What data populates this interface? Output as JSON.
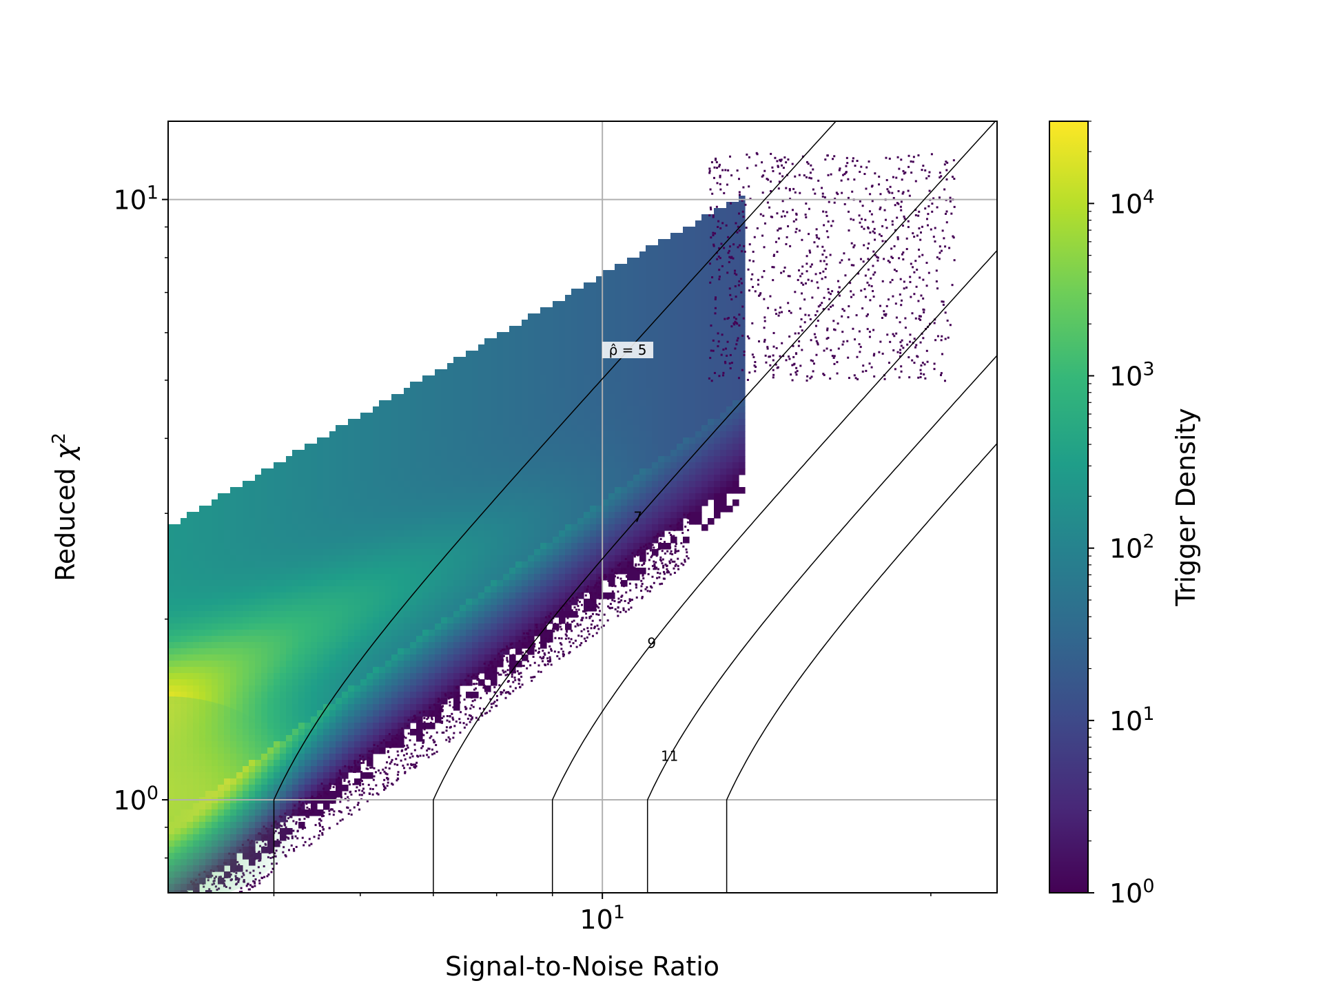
{
  "chart_data": {
    "type": "heatmap",
    "subtype": "hexbin-density",
    "xlabel": "Signal-to-Noise Ratio",
    "ylabel": "Reduced χ²",
    "ylabel_parts": {
      "base": "Reduced ",
      "symbol": "χ",
      "power": "2"
    },
    "x_scale": "log",
    "y_scale": "log",
    "xlim": [
      4.0,
      23.0
    ],
    "ylim": [
      0.7,
      13.5
    ],
    "grid": true,
    "x_major_ticks": [
      {
        "value": 10,
        "base": "10",
        "power": "1"
      }
    ],
    "x_minor_ticks": [
      5,
      6,
      7,
      8,
      9,
      20
    ],
    "y_major_ticks": [
      {
        "value": 1,
        "base": "10",
        "power": "0"
      },
      {
        "value": 10,
        "base": "10",
        "power": "1"
      }
    ],
    "y_minor_ticks": [
      0.8,
      0.9,
      2,
      3,
      4,
      5,
      6,
      7,
      8,
      9
    ],
    "colorbar": {
      "label": "Trigger Density",
      "scale": "log",
      "colormap": "viridis",
      "range": [
        1,
        30000
      ],
      "ticks": [
        {
          "value": 1,
          "base": "10",
          "power": "0"
        },
        {
          "value": 10,
          "base": "10",
          "power": "1"
        },
        {
          "value": 100,
          "base": "10",
          "power": "2"
        },
        {
          "value": 1000,
          "base": "10",
          "power": "3"
        },
        {
          "value": 10000,
          "base": "10",
          "power": "4"
        }
      ],
      "colormap_stops": [
        "#440154",
        "#482878",
        "#3e4989",
        "#31688e",
        "#26828e",
        "#1f9e89",
        "#35b779",
        "#6ece58",
        "#b5de2b",
        "#fde725"
      ]
    },
    "density_region": {
      "upper_edge": [
        [
          4.0,
          2.85
        ],
        [
          10.0,
          7.5
        ],
        [
          13.5,
          10.2
        ]
      ],
      "sparse_cluster": {
        "x_range": [
          12.5,
          21.0
        ],
        "y_range": [
          5.0,
          12.0
        ]
      },
      "peak": {
        "x": 4.0,
        "y": 1.0,
        "density": 20000
      },
      "ridge": [
        [
          4.0,
          1.5
        ],
        [
          7.0,
          2.4
        ],
        [
          10.0,
          3.2
        ]
      ]
    },
    "contours": {
      "quantity": "ρ̂",
      "levels": [
        {
          "level": 5,
          "label": "ρ̂ = 5"
        },
        {
          "level": 7,
          "label": "7"
        },
        {
          "level": 9,
          "label": "9"
        },
        {
          "level": 11,
          "label": "11"
        },
        {
          "level": 13,
          "label": ""
        }
      ],
      "formula": "ρ̂ = SNR / ((1 + χ²³) / 2)^(1/6) for χ² > 1, else SNR"
    }
  }
}
